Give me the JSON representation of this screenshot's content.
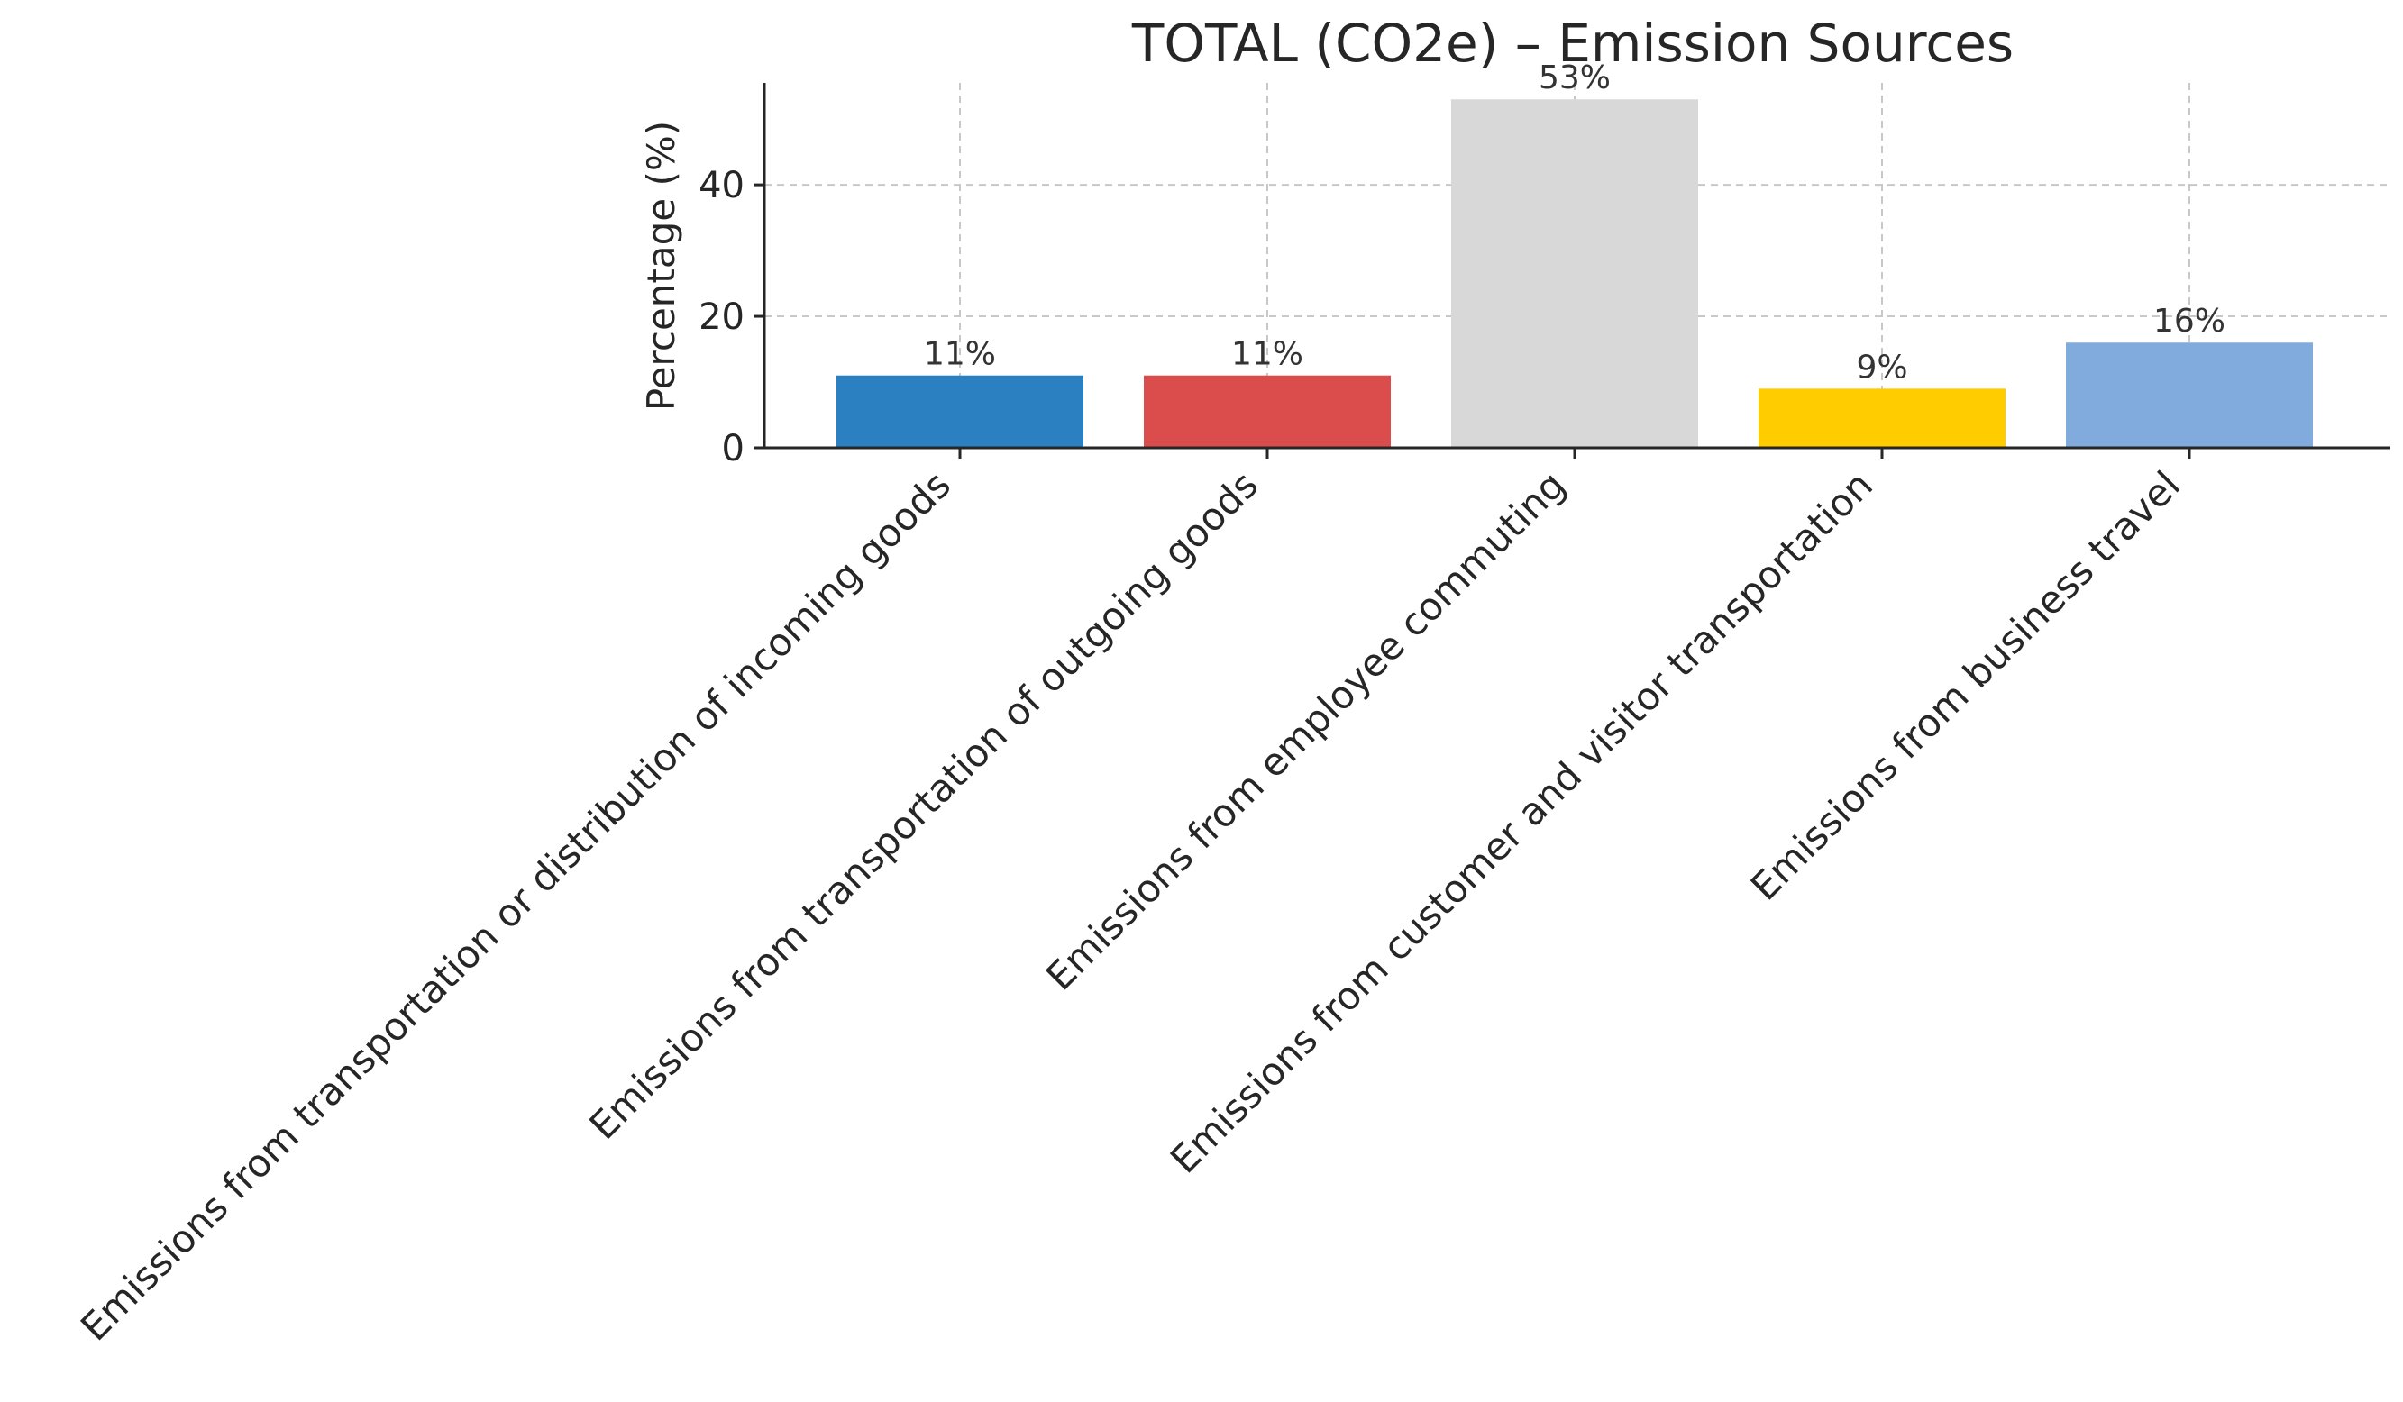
{
  "chart_data": {
    "type": "bar",
    "title": "TOTAL (CO2e) – Emission Sources",
    "xlabel": "",
    "ylabel": "Percentage (%)",
    "categories": [
      "Emissions from transportation or distribution of incoming goods",
      "Emissions from transportation of outgoing goods",
      "Emissions from employee commuting",
      "Emissions from customer and visitor transportation",
      "Emissions from business travel"
    ],
    "values": [
      11,
      11,
      53,
      9,
      16
    ],
    "data_labels": [
      "11%",
      "11%",
      "53%",
      "9%",
      "16%"
    ],
    "colors": [
      "#2a80c0",
      "#db4c4c",
      "#d8d8d8",
      "#ffcc00",
      "#81abdc"
    ],
    "ylim": [
      0,
      55.5
    ],
    "yticks": [
      0,
      20,
      40
    ],
    "ytick_labels": [
      "0",
      "20",
      "40"
    ],
    "grid": true,
    "legend": "none"
  }
}
